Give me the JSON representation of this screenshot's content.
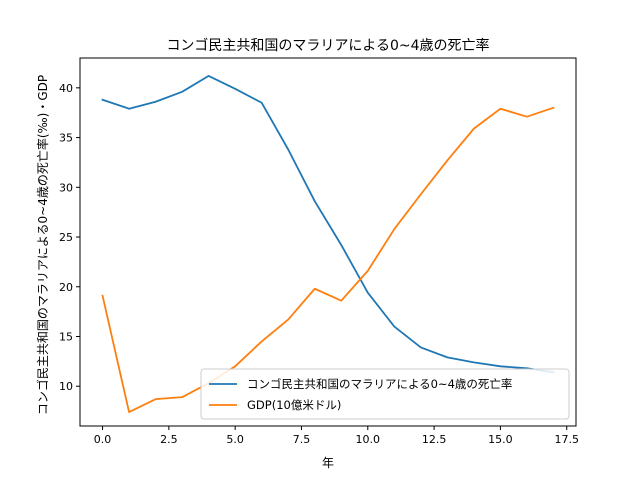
{
  "chart_data": {
    "type": "line",
    "title": "コンゴ民主共和国のマラリアによる0~4歳の死亡率",
    "xlabel": "年",
    "ylabel": "コンゴ民主共和国のマラリアによる0~4歳の死亡率(‰)・GDP",
    "xlim": [
      -0.85,
      17.85
    ],
    "ylim": [
      6.0,
      43.0
    ],
    "xticks": [
      0.0,
      2.5,
      5.0,
      7.5,
      10.0,
      12.5,
      15.0,
      17.5
    ],
    "xtick_labels": [
      "0.0",
      "2.5",
      "5.0",
      "7.5",
      "10.0",
      "12.5",
      "15.0",
      "17.5"
    ],
    "yticks": [
      10,
      15,
      20,
      25,
      30,
      35,
      40
    ],
    "ytick_labels": [
      "10",
      "15",
      "20",
      "25",
      "30",
      "35",
      "40"
    ],
    "grid": false,
    "legend_position": "lower-right",
    "x": [
      0,
      1,
      2,
      3,
      4,
      5,
      6,
      7,
      8,
      9,
      10,
      11,
      12,
      13,
      14,
      15,
      16,
      17
    ],
    "series": [
      {
        "name": "コンゴ民主共和国のマラリアによる0~4歳の死亡率",
        "color": "#1f77b4",
        "values": [
          38.8,
          37.9,
          38.6,
          39.6,
          41.2,
          39.9,
          38.5,
          33.8,
          28.6,
          24.2,
          19.4,
          16.0,
          13.9,
          12.9,
          12.4,
          12.0,
          11.8,
          11.4
        ]
      },
      {
        "name": "GDP(10億米ドル)",
        "color": "#ff7f0e",
        "values": [
          19.1,
          7.4,
          8.7,
          8.9,
          10.3,
          12.0,
          14.5,
          16.7,
          19.8,
          18.6,
          21.6,
          25.8,
          29.3,
          32.7,
          35.9,
          37.9,
          37.1,
          38.0
        ]
      }
    ]
  }
}
